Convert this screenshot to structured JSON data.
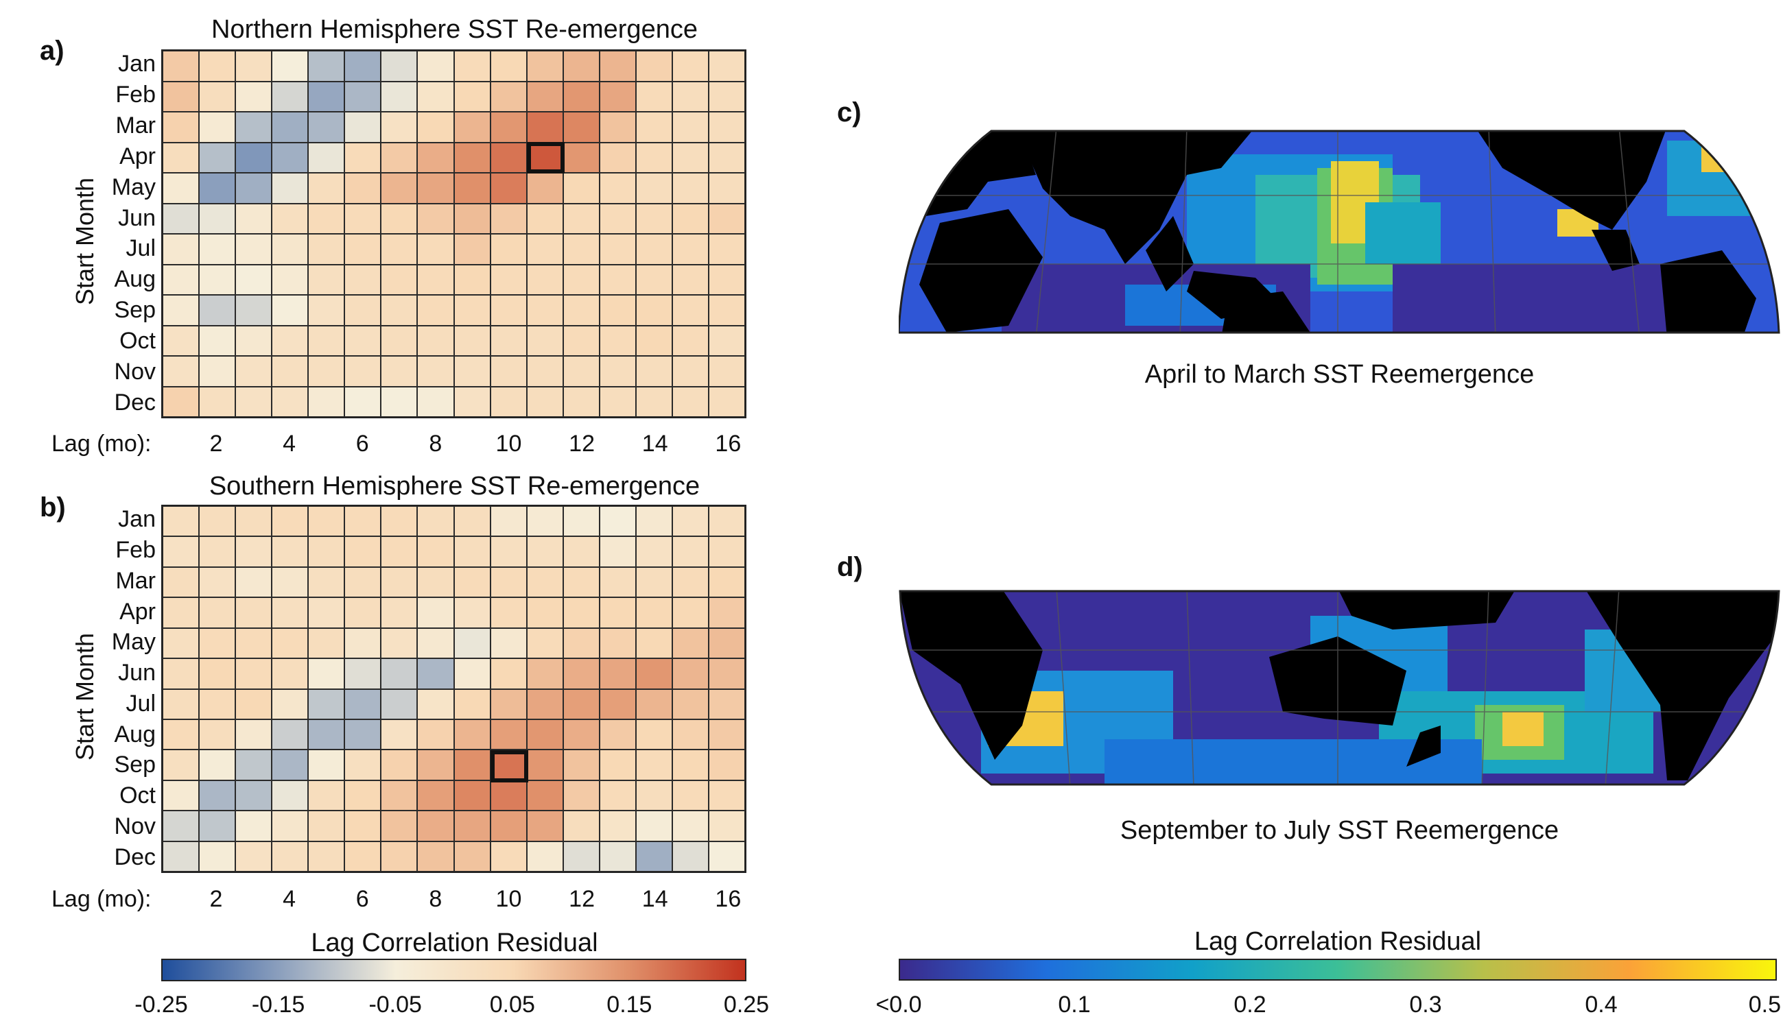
{
  "chart_data": [
    {
      "type": "heatmap",
      "panel": "a)",
      "title": "Northern Hemisphere SST Re-emergence",
      "ylabel": "Start Month",
      "xlabel": "Lag (mo):",
      "rows": [
        "Jan",
        "Feb",
        "Mar",
        "Apr",
        "May",
        "Jun",
        "Jul",
        "Aug",
        "Sep",
        "Oct",
        "Nov",
        "Dec"
      ],
      "columns": [
        1,
        2,
        3,
        4,
        5,
        6,
        7,
        8,
        9,
        10,
        11,
        12,
        13,
        14,
        15,
        16
      ],
      "xticks": [
        "2",
        "4",
        "6",
        "8",
        "10",
        "12",
        "14",
        "16"
      ],
      "highlight": {
        "row": "Apr",
        "lag": 11
      },
      "values": [
        [
          0.07,
          0.04,
          0.02,
          -0.05,
          -0.11,
          -0.13,
          -0.07,
          -0.02,
          0.04,
          0.05,
          0.08,
          0.1,
          0.1,
          0.06,
          0.04,
          0.03
        ],
        [
          0.08,
          0.03,
          -0.03,
          -0.08,
          -0.14,
          -0.12,
          -0.06,
          0.0,
          0.05,
          0.08,
          0.12,
          0.14,
          0.12,
          0.04,
          0.03,
          0.03
        ],
        [
          0.06,
          -0.03,
          -0.11,
          -0.13,
          -0.12,
          -0.06,
          0.01,
          0.05,
          0.1,
          0.14,
          0.18,
          0.16,
          0.08,
          0.04,
          0.03,
          0.03
        ],
        [
          0.03,
          -0.11,
          -0.16,
          -0.13,
          -0.06,
          0.04,
          0.07,
          0.11,
          0.15,
          0.18,
          0.21,
          0.14,
          0.06,
          0.04,
          0.03,
          0.03
        ],
        [
          -0.03,
          -0.15,
          -0.13,
          -0.06,
          0.03,
          0.06,
          0.1,
          0.12,
          0.15,
          0.17,
          0.1,
          0.05,
          0.04,
          0.03,
          0.03,
          0.03
        ],
        [
          -0.07,
          -0.06,
          -0.02,
          0.02,
          0.04,
          0.04,
          0.05,
          0.07,
          0.09,
          0.07,
          0.05,
          0.04,
          0.04,
          0.04,
          0.05,
          0.06
        ],
        [
          -0.02,
          -0.04,
          -0.03,
          -0.01,
          0.03,
          0.04,
          0.04,
          0.04,
          0.07,
          0.05,
          0.04,
          0.04,
          0.04,
          0.04,
          0.04,
          0.04
        ],
        [
          -0.03,
          -0.04,
          -0.05,
          -0.03,
          0.02,
          0.03,
          0.04,
          0.04,
          0.05,
          0.04,
          0.04,
          0.04,
          0.04,
          0.04,
          0.04,
          0.04
        ],
        [
          -0.03,
          -0.09,
          -0.08,
          -0.05,
          0.01,
          0.03,
          0.03,
          0.04,
          0.04,
          0.04,
          0.04,
          0.04,
          0.05,
          0.05,
          0.04,
          0.04
        ],
        [
          0.01,
          -0.04,
          -0.02,
          0.01,
          0.02,
          0.02,
          0.03,
          0.03,
          0.03,
          0.03,
          0.03,
          0.04,
          0.04,
          0.05,
          0.04,
          0.02
        ],
        [
          0.01,
          -0.03,
          0.01,
          0.02,
          0.02,
          0.02,
          0.02,
          0.02,
          0.02,
          0.03,
          0.03,
          0.03,
          0.03,
          0.03,
          0.03,
          0.03
        ],
        [
          0.06,
          0.02,
          0.01,
          0.01,
          -0.03,
          -0.05,
          -0.05,
          -0.04,
          0.01,
          0.03,
          0.03,
          0.03,
          0.03,
          0.03,
          0.03,
          0.03
        ]
      ]
    },
    {
      "type": "heatmap",
      "panel": "b)",
      "title": "Southern Hemisphere SST Re-emergence",
      "ylabel": "Start Month",
      "xlabel": "Lag (mo):",
      "rows": [
        "Jan",
        "Feb",
        "Mar",
        "Apr",
        "May",
        "Jun",
        "Jul",
        "Aug",
        "Sep",
        "Oct",
        "Nov",
        "Dec"
      ],
      "columns": [
        1,
        2,
        3,
        4,
        5,
        6,
        7,
        8,
        9,
        10,
        11,
        12,
        13,
        14,
        15,
        16
      ],
      "xticks": [
        "2",
        "4",
        "6",
        "8",
        "10",
        "12",
        "14",
        "16"
      ],
      "highlight": {
        "row": "Sep",
        "lag": 10
      },
      "values": [
        [
          0.02,
          0.03,
          0.03,
          0.04,
          0.04,
          0.04,
          0.04,
          0.03,
          0.03,
          -0.02,
          -0.03,
          -0.04,
          -0.05,
          -0.02,
          0.01,
          0.02
        ],
        [
          0.01,
          0.02,
          0.01,
          0.02,
          0.03,
          0.04,
          0.04,
          0.04,
          0.03,
          0.02,
          0.02,
          0.02,
          -0.02,
          0.01,
          0.02,
          0.03
        ],
        [
          0.03,
          0.01,
          -0.02,
          -0.01,
          0.02,
          0.03,
          0.03,
          0.03,
          0.04,
          0.04,
          0.04,
          0.04,
          0.03,
          0.03,
          0.04,
          0.05
        ],
        [
          0.03,
          0.03,
          0.03,
          0.02,
          0.01,
          0.03,
          0.02,
          -0.02,
          0.01,
          0.04,
          0.05,
          0.05,
          0.05,
          0.05,
          0.05,
          0.07
        ],
        [
          0.02,
          0.04,
          0.04,
          0.04,
          0.03,
          -0.01,
          0.01,
          -0.02,
          -0.06,
          -0.02,
          0.04,
          0.06,
          0.06,
          0.05,
          0.08,
          0.09
        ],
        [
          0.03,
          0.05,
          0.04,
          0.03,
          -0.04,
          -0.07,
          -0.09,
          -0.12,
          -0.03,
          0.05,
          0.09,
          0.11,
          0.12,
          0.14,
          0.1,
          0.09
        ],
        [
          0.03,
          0.04,
          0.05,
          -0.01,
          -0.1,
          -0.12,
          -0.09,
          0.0,
          0.05,
          0.09,
          0.12,
          0.13,
          0.13,
          0.1,
          0.08,
          0.07
        ],
        [
          0.04,
          0.03,
          -0.02,
          -0.09,
          -0.12,
          -0.12,
          0.01,
          0.06,
          0.1,
          0.13,
          0.14,
          0.11,
          0.07,
          0.05,
          0.06,
          0.07
        ],
        [
          0.02,
          -0.04,
          -0.1,
          -0.12,
          -0.04,
          0.02,
          0.06,
          0.1,
          0.15,
          0.18,
          0.14,
          0.08,
          0.05,
          0.04,
          0.05,
          0.06
        ],
        [
          -0.03,
          -0.12,
          -0.11,
          -0.06,
          0.03,
          0.05,
          0.08,
          0.13,
          0.16,
          0.17,
          0.15,
          0.07,
          0.04,
          0.03,
          0.04,
          0.04
        ],
        [
          -0.08,
          -0.1,
          -0.04,
          -0.01,
          0.03,
          0.05,
          0.08,
          0.11,
          0.12,
          0.13,
          0.12,
          0.03,
          0.0,
          -0.04,
          -0.03,
          0.0
        ],
        [
          -0.07,
          -0.04,
          0.01,
          0.02,
          0.03,
          0.05,
          0.06,
          0.08,
          0.08,
          0.04,
          -0.03,
          -0.07,
          -0.06,
          -0.13,
          -0.07,
          -0.05
        ]
      ]
    }
  ],
  "colorbar_left": {
    "title": "Lag Correlation Residual",
    "ticks": [
      "-0.25",
      "-0.15",
      "-0.05",
      "0.05",
      "0.15",
      "0.25"
    ],
    "range": [
      -0.25,
      0.25
    ],
    "colors": [
      "#1f4e9c",
      "#8b9fbd",
      "#f5eedb",
      "#f8d9b5",
      "#e0906a",
      "#c2321e"
    ]
  },
  "colorbar_right": {
    "title": "Lag Correlation Residual",
    "ticks": [
      "<0.0",
      "0.1",
      "0.2",
      "0.3",
      "0.4",
      "0.5"
    ],
    "range": [
      0.0,
      0.5
    ],
    "colors": [
      "#3b2a8c",
      "#1f6fdc",
      "#11a0c9",
      "#3cbf97",
      "#b8c04a",
      "#fba238",
      "#f9f60c"
    ]
  },
  "maps": [
    {
      "panel": "c)",
      "caption": "April to March SST Reemergence"
    },
    {
      "panel": "d)",
      "caption": "September to July SST Reemergence"
    }
  ]
}
